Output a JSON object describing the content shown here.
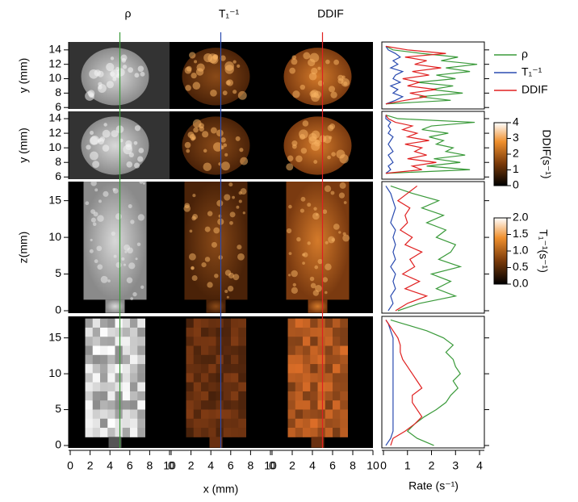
{
  "chart_data": {
    "type": "profile-image-grid",
    "column_titles": [
      "ρ",
      "T₁⁻¹",
      "DDIF"
    ],
    "series_styles": [
      {
        "name": "ρ",
        "color": "#3a9a3a"
      },
      {
        "name": "T₁⁻¹",
        "color": "#2a4bb0"
      },
      {
        "name": "DDIF",
        "color": "#e02020"
      }
    ],
    "xlabel": "x (mm)",
    "xlim": [
      0,
      10
    ],
    "xticks": [
      0,
      2,
      4,
      6,
      8,
      10
    ],
    "profile_xlabel": "Rate (s⁻¹)",
    "profile_xlim": [
      0,
      4.2
    ],
    "profile_xticks": [
      0,
      1,
      2,
      3,
      4
    ],
    "rows": [
      {
        "ylabel": "y (mm)",
        "ylim": [
          5.8,
          15.1
        ],
        "yticks": [
          6,
          8,
          10,
          12,
          14
        ],
        "y": [
          6.5,
          7,
          7.5,
          8,
          8.5,
          9,
          9.5,
          10,
          10.5,
          11,
          11.5,
          12,
          12.5,
          13,
          13.5,
          14,
          14.5
        ],
        "profiles": [
          [
            0.1,
            2.8,
            1.5,
            3.3,
            2.0,
            2.9,
            1.4,
            3.0,
            2.2,
            3.6,
            2.6,
            3.9,
            2.4,
            3.1,
            1.6,
            0.4,
            0.1
          ],
          [
            0.1,
            0.5,
            0.8,
            0.4,
            0.6,
            0.3,
            0.7,
            0.4,
            0.5,
            0.8,
            0.3,
            0.6,
            0.4,
            0.7,
            0.5,
            0.2,
            0.1
          ],
          [
            0.1,
            0.9,
            1.8,
            1.1,
            2.2,
            1.0,
            1.5,
            0.8,
            1.9,
            1.2,
            2.4,
            1.3,
            1.8,
            0.9,
            2.6,
            1.0,
            0.1
          ]
        ]
      },
      {
        "ylabel": "y (mm)",
        "ylim": [
          5.7,
          15
        ],
        "yticks": [
          6,
          8,
          10,
          12,
          14
        ],
        "y": [
          6.5,
          7,
          7.5,
          8,
          8.5,
          9,
          9.5,
          10,
          10.5,
          11,
          11.5,
          12,
          12.5,
          13,
          13.5,
          14,
          14.5
        ],
        "profiles": [
          [
            0.1,
            3.6,
            1.8,
            3.2,
            2.1,
            3.4,
            2.6,
            2.9,
            2.2,
            2.5,
            1.9,
            2.7,
            1.6,
            2.0,
            3.8,
            0.6,
            0.1
          ],
          [
            0.1,
            0.3,
            0.2,
            0.4,
            0.3,
            0.2,
            0.4,
            0.3,
            0.2,
            0.3,
            0.4,
            0.2,
            0.3,
            0.2,
            0.3,
            0.1,
            0.1
          ],
          [
            0.1,
            1.6,
            1.2,
            2.2,
            1.0,
            1.8,
            1.3,
            1.6,
            0.9,
            1.9,
            1.0,
            1.4,
            0.8,
            1.2,
            0.5,
            0.2,
            0.1
          ]
        ]
      },
      {
        "ylabel": "z(mm)",
        "ylim": [
          -0.33,
          17.6
        ],
        "yticks": [
          0,
          5,
          10,
          15
        ],
        "y": [
          0,
          1,
          2,
          3,
          4,
          5,
          6,
          7,
          8,
          9,
          10,
          11,
          12,
          13,
          14,
          15,
          16,
          17
        ],
        "profiles": [
          [
            0.6,
            1.5,
            3.0,
            2.2,
            2.8,
            2.0,
            3.2,
            2.3,
            2.8,
            3.0,
            2.2,
            2.6,
            1.8,
            2.5,
            1.6,
            2.3,
            1.2,
            0.3
          ],
          [
            0.2,
            0.4,
            0.3,
            0.5,
            0.4,
            0.5,
            0.3,
            0.5,
            0.4,
            0.5,
            0.4,
            0.5,
            0.3,
            0.4,
            0.5,
            0.4,
            0.3,
            0.1
          ],
          [
            0.5,
            1.0,
            1.8,
            0.9,
            1.5,
            0.8,
            1.3,
            1.1,
            1.6,
            0.9,
            1.2,
            0.7,
            1.0,
            0.9,
            1.1,
            0.6,
            1.0,
            1.4
          ]
        ]
      },
      {
        "ylim": [
          -0.34,
          18
        ],
        "yticks": [
          0,
          5,
          10,
          15
        ],
        "y": [
          0,
          1,
          2,
          3,
          4,
          5,
          6,
          7,
          8,
          9,
          10,
          11,
          12,
          13,
          14,
          15,
          16,
          17,
          17.5
        ],
        "profiles": [
          [
            2.1,
            1.4,
            1.0,
            1.3,
            1.7,
            2.2,
            2.6,
            2.8,
            3.1,
            2.9,
            3.2,
            3.0,
            2.9,
            2.6,
            2.9,
            2.5,
            1.8,
            0.8,
            0.3
          ],
          [
            0.1,
            0.3,
            0.4,
            0.4,
            0.4,
            0.4,
            0.4,
            0.4,
            0.4,
            0.4,
            0.4,
            0.4,
            0.4,
            0.4,
            0.4,
            0.4,
            0.3,
            0.2,
            0.1
          ],
          [
            0.3,
            0.4,
            0.9,
            1.3,
            1.6,
            1.4,
            1.2,
            1.2,
            1.6,
            1.4,
            1.2,
            1.0,
            0.8,
            0.7,
            0.7,
            0.6,
            0.4,
            0.2,
            0.1
          ]
        ]
      }
    ],
    "colorbars": [
      {
        "label": "DDIF(s⁻¹)",
        "lim": [
          0,
          4
        ],
        "ticks": [
          0,
          1,
          2,
          3,
          4
        ]
      },
      {
        "label": "T₁⁻¹(s⁻¹)",
        "lim": [
          0,
          2
        ],
        "ticks": [
          {
            "value": 0,
            "label": "0.0"
          },
          {
            "value": 0.5,
            "label": "0.5"
          },
          {
            "value": 1,
            "label": "1.0"
          },
          {
            "value": 1.5,
            "label": "1.5"
          },
          {
            "value": 2,
            "label": "2.0"
          }
        ]
      }
    ]
  }
}
